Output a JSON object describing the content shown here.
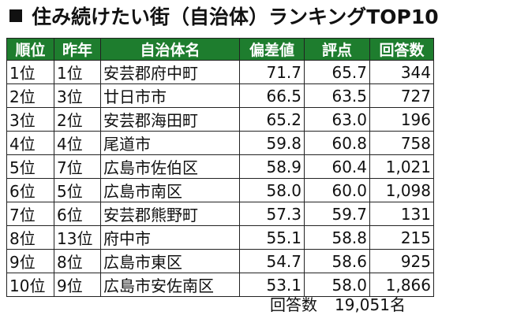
{
  "title": "住み続けたい街（自治体）ランキングTOP10",
  "headers": [
    "順位",
    "昨年",
    "自治体名",
    "偏差値",
    "評点",
    "回答数"
  ],
  "rows": [
    {
      "rank": "1位",
      "prev": "1位",
      "name": "安芸郡府中町",
      "score": "71.7",
      "rating": "65.7",
      "responses": "344"
    },
    {
      "rank": "2位",
      "prev": "3位",
      "name": "廿日市市",
      "score": "66.5",
      "rating": "63.5",
      "responses": "727"
    },
    {
      "rank": "3位",
      "prev": "2位",
      "name": "安芸郡海田町",
      "score": "65.2",
      "rating": "63.0",
      "responses": "196"
    },
    {
      "rank": "4位",
      "prev": "4位",
      "name": "尾道市",
      "score": "59.8",
      "rating": "60.8",
      "responses": "758"
    },
    {
      "rank": "5位",
      "prev": "7位",
      "name": "広島市佐伯区",
      "score": "58.9",
      "rating": "60.4",
      "responses": "1,021"
    },
    {
      "rank": "6位",
      "prev": "5位",
      "name": "広島市南区",
      "score": "58.0",
      "rating": "60.0",
      "responses": "1,098"
    },
    {
      "rank": "7位",
      "prev": "6位",
      "name": "安芸郡熊野町",
      "score": "57.3",
      "rating": "59.7",
      "responses": "131"
    },
    {
      "rank": "8位",
      "prev": "13位",
      "name": "府中市",
      "score": "55.1",
      "rating": "58.8",
      "responses": "215"
    },
    {
      "rank": "9位",
      "prev": "8位",
      "name": "広島市東区",
      "score": "54.7",
      "rating": "58.6",
      "responses": "925"
    },
    {
      "rank": "10位",
      "prev": "9位",
      "name": "広島市安佐南区",
      "score": "53.1",
      "rating": "58.0",
      "responses": "1,866"
    }
  ],
  "footer": {
    "label": "回答数",
    "value": "19,051名"
  },
  "colors": {
    "header_bg": "#1e7d2e",
    "header_text": "#ffffff"
  }
}
